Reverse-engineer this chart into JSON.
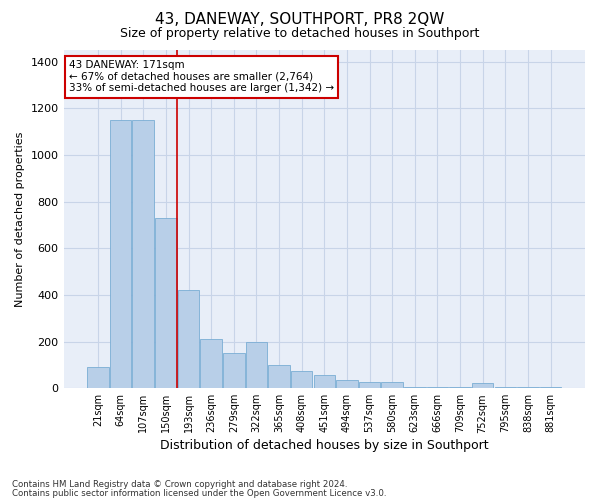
{
  "title": "43, DANEWAY, SOUTHPORT, PR8 2QW",
  "subtitle": "Size of property relative to detached houses in Southport",
  "xlabel": "Distribution of detached houses by size in Southport",
  "ylabel": "Number of detached properties",
  "footnote1": "Contains HM Land Registry data © Crown copyright and database right 2024.",
  "footnote2": "Contains public sector information licensed under the Open Government Licence v3.0.",
  "categories": [
    "21sqm",
    "64sqm",
    "107sqm",
    "150sqm",
    "193sqm",
    "236sqm",
    "279sqm",
    "322sqm",
    "365sqm",
    "408sqm",
    "451sqm",
    "494sqm",
    "537sqm",
    "580sqm",
    "623sqm",
    "666sqm",
    "709sqm",
    "752sqm",
    "795sqm",
    "838sqm",
    "881sqm"
  ],
  "values": [
    90,
    1150,
    1150,
    730,
    420,
    210,
    150,
    200,
    100,
    75,
    55,
    35,
    28,
    28,
    5,
    3,
    3,
    22,
    3,
    3,
    3
  ],
  "bar_color": "#b8cfe8",
  "bar_edge_color": "#7aadd4",
  "grid_color": "#c8d4e8",
  "background_color": "#e8eef8",
  "red_line_x": 3.5,
  "annotation_text1": "43 DANEWAY: 171sqm",
  "annotation_text2": "← 67% of detached houses are smaller (2,764)",
  "annotation_text3": "33% of semi-detached houses are larger (1,342) →",
  "annotation_box_color": "#ffffff",
  "annotation_box_edge": "#cc0000",
  "ylim": [
    0,
    1450
  ],
  "yticks": [
    0,
    200,
    400,
    600,
    800,
    1000,
    1200,
    1400
  ],
  "title_fontsize": 11,
  "subtitle_fontsize": 9,
  "ylabel_fontsize": 8,
  "xlabel_fontsize": 9
}
